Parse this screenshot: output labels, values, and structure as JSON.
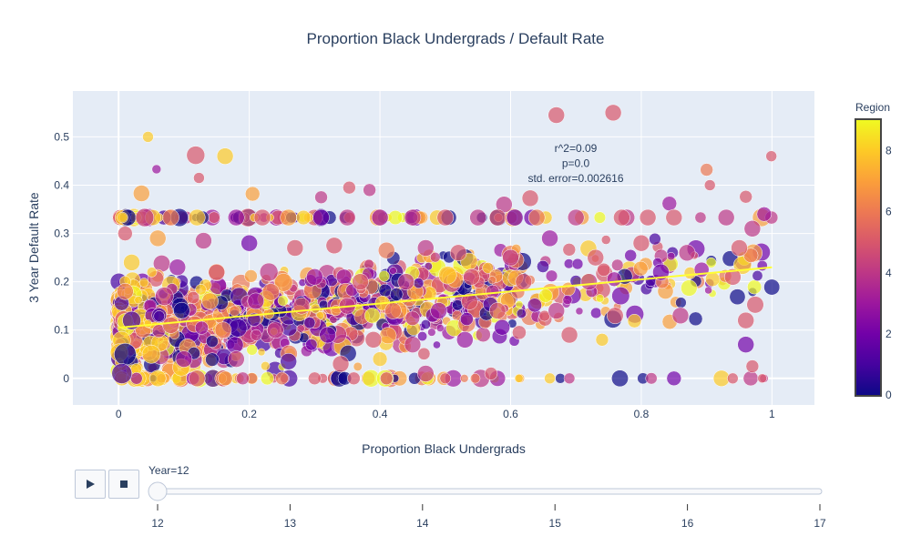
{
  "chart_data": {
    "type": "scatter",
    "title": "Proportion Black Undergrads / Default Rate",
    "xlabel": "Proportion Black Undergrads",
    "ylabel": "3 Year Default Rate",
    "xlim": [
      -0.07,
      1.065
    ],
    "ylim": [
      -0.055,
      0.595
    ],
    "xticks": [
      0,
      0.2,
      0.4,
      0.6,
      0.8,
      1
    ],
    "xtick_labels": [
      "0",
      "0.2",
      "0.4",
      "0.6",
      "0.8",
      "1"
    ],
    "yticks": [
      0,
      0.1,
      0.2,
      0.3,
      0.4,
      0.5
    ],
    "ytick_labels": [
      "0",
      "0.1",
      "0.2",
      "0.3",
      "0.4",
      "0.5"
    ],
    "grid": true,
    "plot_bgcolor": "#e5ecf6",
    "color_scale": {
      "title": "Region",
      "range": [
        0,
        9
      ],
      "ticks": [
        0,
        2,
        4,
        6,
        8
      ],
      "tick_labels": [
        "0",
        "2",
        "4",
        "6",
        "8"
      ],
      "colors": [
        "#0d0887",
        "#46039f",
        "#7201a8",
        "#9c179e",
        "#bd3786",
        "#d8576b",
        "#ed7953",
        "#fb9f3a",
        "#fdca26",
        "#f0f921"
      ]
    },
    "annotation": [
      "r^2=0.09",
      "p=0.0",
      "std. error=0.002616"
    ],
    "trendline": {
      "x": [
        0,
        1
      ],
      "y": [
        0.105,
        0.23
      ],
      "color": "#ffff33"
    },
    "series": [
      {
        "marker_opacity": 0.7,
        "points": [
          [
            0.67,
            0.545,
            5,
            9
          ],
          [
            0.757,
            0.55,
            5,
            9
          ],
          [
            0.045,
            0.5,
            8,
            6
          ],
          [
            0.118,
            0.462,
            5,
            10
          ],
          [
            0.163,
            0.46,
            8,
            9
          ],
          [
            0.058,
            0.433,
            3,
            5
          ],
          [
            0.123,
            0.415,
            5,
            6
          ],
          [
            0.999,
            0.46,
            5,
            6
          ],
          [
            0.9,
            0.432,
            6,
            7
          ],
          [
            0.905,
            0.4,
            5,
            6
          ],
          [
            0.96,
            0.376,
            5,
            7
          ],
          [
            0.035,
            0.383,
            7,
            9
          ],
          [
            0.205,
            0.382,
            7,
            8
          ],
          [
            0.31,
            0.375,
            4,
            7
          ],
          [
            0.353,
            0.395,
            5,
            7
          ],
          [
            0.384,
            0.39,
            4,
            7
          ],
          [
            0.59,
            0.36,
            4,
            9
          ],
          [
            0.63,
            0.373,
            5,
            9
          ],
          [
            0.843,
            0.362,
            3,
            8
          ],
          [
            0.988,
            0.34,
            3,
            8
          ],
          [
            0.04,
            0.333,
            4,
            10
          ],
          [
            0.08,
            0.333,
            6,
            9
          ],
          [
            0.12,
            0.333,
            8,
            9
          ],
          [
            0.18,
            0.333,
            3,
            9
          ],
          [
            0.22,
            0.333,
            5,
            9
          ],
          [
            0.26,
            0.333,
            7,
            9
          ],
          [
            0.31,
            0.333,
            2,
            9
          ],
          [
            0.35,
            0.333,
            4,
            9
          ],
          [
            0.4,
            0.333,
            3,
            9
          ],
          [
            0.45,
            0.333,
            4,
            9
          ],
          [
            0.5,
            0.333,
            5,
            9
          ],
          [
            0.55,
            0.333,
            4,
            9
          ],
          [
            0.58,
            0.333,
            5,
            9
          ],
          [
            0.64,
            0.333,
            6,
            9
          ],
          [
            0.7,
            0.333,
            4,
            9
          ],
          [
            0.77,
            0.333,
            5,
            9
          ],
          [
            0.81,
            0.333,
            5,
            9
          ],
          [
            0.85,
            0.333,
            5,
            9
          ],
          [
            0.93,
            0.333,
            4,
            9
          ],
          [
            0.97,
            0.31,
            4,
            9
          ],
          [
            0.01,
            0.3,
            5,
            8
          ],
          [
            0.06,
            0.29,
            7,
            9
          ],
          [
            0.13,
            0.285,
            4,
            9
          ],
          [
            0.2,
            0.28,
            2,
            9
          ],
          [
            0.27,
            0.27,
            5,
            9
          ],
          [
            0.33,
            0.275,
            5,
            9
          ],
          [
            0.41,
            0.265,
            6,
            9
          ],
          [
            0.47,
            0.27,
            4,
            9
          ],
          [
            0.52,
            0.26,
            5,
            9
          ],
          [
            0.6,
            0.25,
            4,
            9
          ],
          [
            0.66,
            0.29,
            3,
            9
          ],
          [
            0.73,
            0.25,
            5,
            9
          ],
          [
            0.8,
            0.28,
            5,
            9
          ],
          [
            0.87,
            0.26,
            4,
            9
          ],
          [
            0.95,
            0.27,
            5,
            9
          ],
          [
            0.02,
            0.24,
            8,
            9
          ],
          [
            0.09,
            0.23,
            3,
            9
          ],
          [
            0.15,
            0.22,
            6,
            9
          ],
          [
            0.23,
            0.22,
            4,
            10
          ],
          [
            0.3,
            0.21,
            3,
            9
          ],
          [
            0.37,
            0.2,
            5,
            9
          ],
          [
            0.44,
            0.2,
            4,
            9
          ],
          [
            0.54,
            0.21,
            5,
            9
          ],
          [
            0.62,
            0.2,
            5,
            9
          ],
          [
            0.72,
            0.2,
            4,
            9
          ],
          [
            0.83,
            0.22,
            2,
            9
          ],
          [
            0.94,
            0.21,
            5,
            9
          ],
          [
            0.01,
            0.18,
            6,
            9
          ],
          [
            0.07,
            0.17,
            4,
            10
          ],
          [
            0.14,
            0.16,
            7,
            9
          ],
          [
            0.21,
            0.16,
            3,
            9
          ],
          [
            0.28,
            0.15,
            5,
            9
          ],
          [
            0.35,
            0.15,
            4,
            9
          ],
          [
            0.42,
            0.14,
            6,
            9
          ],
          [
            0.49,
            0.14,
            3,
            9
          ],
          [
            0.58,
            0.14,
            5,
            9
          ],
          [
            0.67,
            0.14,
            4,
            9
          ],
          [
            0.76,
            0.13,
            5,
            9
          ],
          [
            0.86,
            0.13,
            4,
            9
          ],
          [
            0.96,
            0.12,
            5,
            9
          ],
          [
            0.02,
            0.12,
            1,
            10
          ],
          [
            0.08,
            0.11,
            5,
            9
          ],
          [
            0.16,
            0.1,
            6,
            9
          ],
          [
            0.24,
            0.1,
            4,
            9
          ],
          [
            0.32,
            0.09,
            2,
            9
          ],
          [
            0.39,
            0.08,
            5,
            9
          ],
          [
            0.45,
            0.07,
            4,
            9
          ],
          [
            0.53,
            0.08,
            3,
            9
          ],
          [
            0.69,
            0.09,
            5,
            9
          ],
          [
            0.74,
            0.08,
            8,
            7
          ],
          [
            0.96,
            0.07,
            2,
            9
          ],
          [
            0.01,
            0.05,
            0,
            12
          ],
          [
            0.05,
            0.05,
            8,
            10
          ],
          [
            0.1,
            0.04,
            3,
            9
          ],
          [
            0.18,
            0.04,
            4,
            9
          ],
          [
            0.26,
            0.035,
            1,
            9
          ],
          [
            0.34,
            0.03,
            5,
            9
          ],
          [
            0.4,
            0.04,
            8,
            8
          ],
          [
            0.47,
            0.01,
            4,
            9
          ],
          [
            0.57,
            0.01,
            5,
            7
          ],
          [
            0.97,
            0.025,
            5,
            7
          ],
          [
            0.005,
            0.01,
            1,
            11
          ],
          [
            0.06,
            0.0,
            8,
            9
          ],
          [
            0.12,
            0.0,
            5,
            9
          ],
          [
            0.19,
            0.0,
            4,
            7
          ],
          [
            0.25,
            0.0,
            6,
            7
          ],
          [
            0.3,
            0.0,
            5,
            7
          ],
          [
            0.36,
            0.0,
            5,
            7
          ],
          [
            0.41,
            0.0,
            5,
            7
          ],
          [
            0.5,
            0.0,
            5,
            6
          ],
          [
            0.66,
            0.0,
            8,
            6
          ],
          [
            0.69,
            0.0,
            4,
            6
          ],
          [
            0.85,
            0.0,
            2,
            8
          ],
          [
            0.94,
            0.0,
            5,
            6
          ],
          [
            0.985,
            0.0,
            5,
            5
          ]
        ]
      }
    ],
    "points_fields": [
      "x",
      "y",
      "region",
      "marker_size"
    ]
  },
  "xaxis_title": "Proportion Black Undergrads",
  "slider": {
    "current_label": "Year=12",
    "ticks": [
      "12",
      "13",
      "14",
      "15",
      "16",
      "17"
    ],
    "value": 12,
    "min": 12,
    "max": 17
  },
  "controls": {
    "play_icon": "play-icon",
    "stop_icon": "stop-icon"
  }
}
